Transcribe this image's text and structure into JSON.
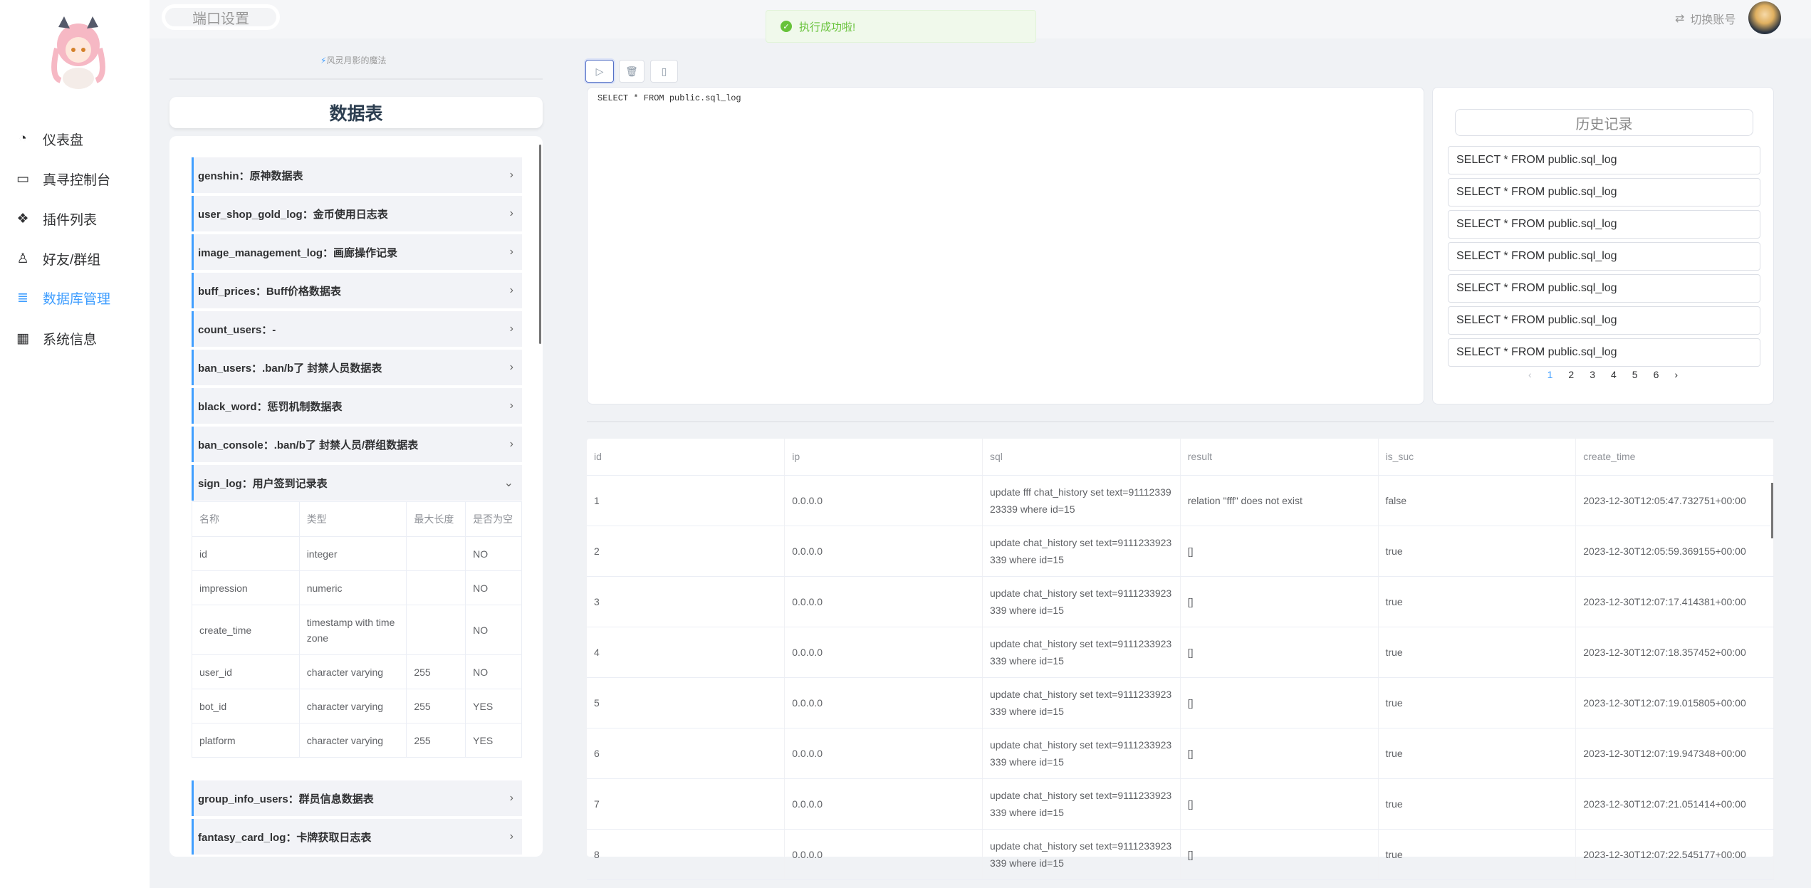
{
  "sidebar": {
    "items": [
      {
        "label": "仪表盘",
        "icon": "dashboard-icon"
      },
      {
        "label": "真寻控制台",
        "icon": "console-icon"
      },
      {
        "label": "插件列表",
        "icon": "plugins-icon"
      },
      {
        "label": "好友/群组",
        "icon": "friends-icon"
      },
      {
        "label": "数据库管理",
        "icon": "database-icon",
        "active": true
      },
      {
        "label": "系统信息",
        "icon": "system-icon"
      }
    ],
    "accent": "#409eff"
  },
  "header": {
    "port_settings": "端口设置",
    "toast": "执行成功啦!",
    "switch_account": "切换账号"
  },
  "left": {
    "magic": "风灵月影的魔法",
    "title": "数据表",
    "tables": [
      "genshin：原神数据表",
      "user_shop_gold_log：金币使用日志表",
      "image_management_log：画廊操作记录",
      "buff_prices：Buff价格数据表",
      "count_users：-",
      "ban_users：.ban/b了 封禁人员数据表",
      "black_word：惩罚机制数据表",
      "ban_console：.ban/b了 封禁人员/群组数据表",
      "sign_log：用户签到记录表",
      "group_info_users：群员信息数据表",
      "fantasy_card_log：卡牌获取日志表"
    ],
    "expanded": {
      "headers": [
        "名称",
        "类型",
        "最大长度",
        "是否为空"
      ],
      "rows": [
        [
          "id",
          "integer",
          "",
          "NO"
        ],
        [
          "impression",
          "numeric",
          "",
          "NO"
        ],
        [
          "create_time",
          "timestamp with time zone",
          "",
          "NO"
        ],
        [
          "user_id",
          "character varying",
          "255",
          "NO"
        ],
        [
          "bot_id",
          "character varying",
          "255",
          "YES"
        ],
        [
          "platform",
          "character varying",
          "255",
          "YES"
        ]
      ]
    }
  },
  "editor": {
    "query": "SELECT * FROM public.sql_log"
  },
  "history": {
    "title": "历史记录",
    "items": [
      "SELECT * FROM public.sql_log",
      "SELECT * FROM public.sql_log",
      "SELECT * FROM public.sql_log",
      "SELECT * FROM public.sql_log",
      "SELECT * FROM public.sql_log",
      "SELECT * FROM public.sql_log",
      "SELECT * FROM public.sql_log"
    ],
    "pages": [
      "1",
      "2",
      "3",
      "4",
      "5",
      "6"
    ],
    "current_page": "1",
    "prev": "‹",
    "next": "›"
  },
  "result": {
    "headers": [
      "id",
      "ip",
      "sql",
      "result",
      "is_suc",
      "create_time"
    ],
    "rows": [
      [
        "1",
        "0.0.0.0",
        "update fff chat_history set text=9111233923339 where id=15",
        "relation \"fff\" does not exist",
        "false",
        "2023-12-30T12:05:47.732751+00:00"
      ],
      [
        "2",
        "0.0.0.0",
        "update chat_history set text=9111233923339 where id=15",
        "[]",
        "true",
        "2023-12-30T12:05:59.369155+00:00"
      ],
      [
        "3",
        "0.0.0.0",
        "update chat_history set text=9111233923339 where id=15",
        "[]",
        "true",
        "2023-12-30T12:07:17.414381+00:00"
      ],
      [
        "4",
        "0.0.0.0",
        "update chat_history set text=9111233923339 where id=15",
        "[]",
        "true",
        "2023-12-30T12:07:18.357452+00:00"
      ],
      [
        "5",
        "0.0.0.0",
        "update chat_history set text=9111233923339 where id=15",
        "[]",
        "true",
        "2023-12-30T12:07:19.015805+00:00"
      ],
      [
        "6",
        "0.0.0.0",
        "update chat_history set text=9111233923339 where id=15",
        "[]",
        "true",
        "2023-12-30T12:07:19.947348+00:00"
      ],
      [
        "7",
        "0.0.0.0",
        "update chat_history set text=9111233923339 where id=15",
        "[]",
        "true",
        "2023-12-30T12:07:21.051414+00:00"
      ],
      [
        "8",
        "0.0.0.0",
        "update chat_history set text=9111233923339 where id=15",
        "[]",
        "true",
        "2023-12-30T12:07:22.545177+00:00"
      ]
    ]
  }
}
